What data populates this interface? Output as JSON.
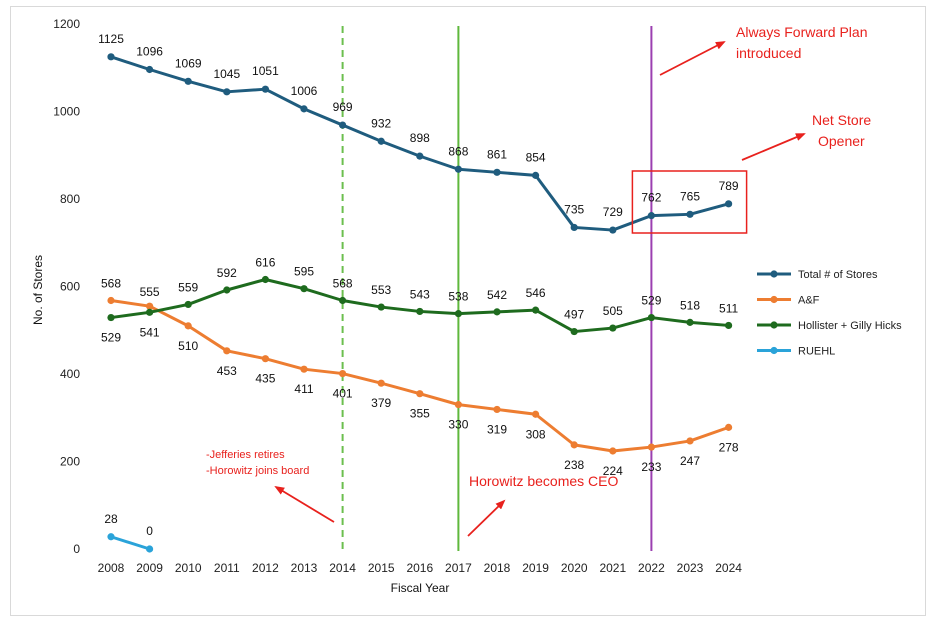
{
  "chart_data": {
    "type": "line",
    "xlabel": "Fiscal Year",
    "ylabel": "No. of Stores",
    "ylim": [
      0,
      1200
    ],
    "yticks": [
      0,
      200,
      400,
      600,
      800,
      1000,
      1200
    ],
    "categories": [
      "2008",
      "2009",
      "2010",
      "2011",
      "2012",
      "2013",
      "2014",
      "2015",
      "2016",
      "2017",
      "2018",
      "2019",
      "2020",
      "2021",
      "2022",
      "2023",
      "2024"
    ],
    "series": [
      {
        "name": "Total # of Stores",
        "color": "#1f5c7e",
        "label_pos": "above",
        "values": [
          1125,
          1096,
          1069,
          1045,
          1051,
          1006,
          969,
          932,
          898,
          868,
          861,
          854,
          735,
          729,
          762,
          765,
          789
        ]
      },
      {
        "name": "A&F",
        "color": "#ed7d31",
        "label_pos": "mixed",
        "values": [
          568,
          555,
          510,
          453,
          435,
          411,
          401,
          379,
          355,
          330,
          319,
          308,
          238,
          224,
          233,
          247,
          278
        ]
      },
      {
        "name": "Hollister + Gilly Hicks",
        "color": "#1e6b1e",
        "label_pos": "mixed",
        "values": [
          529,
          541,
          559,
          592,
          616,
          595,
          568,
          553,
          543,
          538,
          542,
          546,
          497,
          505,
          529,
          518,
          511
        ]
      },
      {
        "name": "RUEHL",
        "color": "#2aa3d9",
        "label_pos": "above",
        "values": [
          28,
          0,
          null,
          null,
          null,
          null,
          null,
          null,
          null,
          null,
          null,
          null,
          null,
          null,
          null,
          null,
          null
        ]
      }
    ],
    "vertical_lines": [
      {
        "year": "2014",
        "color": "#6bbf4e",
        "style": "dashed"
      },
      {
        "year": "2017",
        "color": "#5fb83c",
        "style": "solid"
      },
      {
        "year": "2022",
        "color": "#9b3fb0",
        "style": "solid"
      }
    ],
    "annotations": [
      {
        "text": "Always Forward Plan",
        "color": "#e8211d"
      },
      {
        "text": "introduced",
        "color": "#e8211d"
      },
      {
        "text": "Net Store",
        "color": "#e8211d"
      },
      {
        "text": "Opener",
        "color": "#e8211d"
      },
      {
        "text": "-Jefferies retires",
        "color": "#e8211d"
      },
      {
        "text": "-Horowitz joins board",
        "color": "#e8211d"
      },
      {
        "text": "Horowitz becomes CEO",
        "color": "#e8211d"
      }
    ],
    "highlight_box": {
      "years": [
        "2022",
        "2024"
      ],
      "color": "#e8211d"
    }
  }
}
